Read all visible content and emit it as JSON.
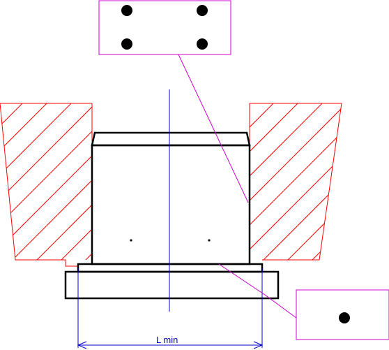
{
  "dimension": {
    "label": "L min"
  },
  "colors": {
    "housing": "#ff0000",
    "part": "#000000",
    "axis": "#0000cc",
    "dimension": "#0000cc",
    "callout": "#cc00cc",
    "background": "#ffffff"
  },
  "callouts": [
    {
      "name": "four-point-indicator",
      "dot_count": 4
    },
    {
      "name": "single-point-indicator",
      "dot_count": 1
    }
  ]
}
